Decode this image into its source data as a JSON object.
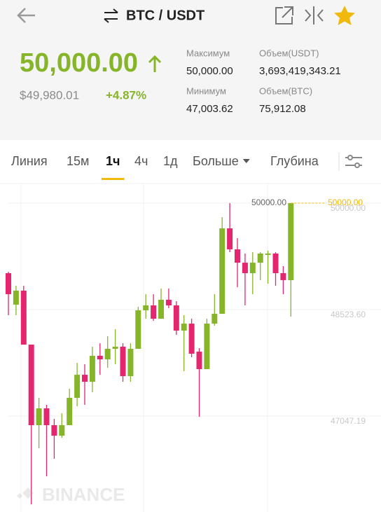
{
  "header": {
    "pair": "BTC / USDT"
  },
  "ticker": {
    "price": "50,000.00",
    "price_usd": "$49,980.01",
    "change": "+4.87%",
    "stats": [
      {
        "label": "Максимум",
        "value": "50,000.00"
      },
      {
        "label": "Объем(USDT)",
        "value": "3,693,419,343.21"
      },
      {
        "label": "Минимум",
        "value": "47,003.62"
      },
      {
        "label": "Объем(BTC)",
        "value": "75,912.08"
      }
    ]
  },
  "tabs": {
    "items": [
      "Линия",
      "15м",
      "1ч",
      "4ч",
      "1д",
      "Больше",
      "Глубина"
    ],
    "selected": 2
  },
  "chart_data": {
    "type": "candlestick",
    "open": [
      49029,
      48592,
      48786,
      48038,
      46921,
      47154,
      46921,
      46775,
      46921,
      47300,
      47620,
      47523,
      47883,
      47834,
      47980,
      48009,
      47601,
      47980,
      48514,
      48582,
      48397,
      48660,
      48582,
      48232,
      48329,
      47941,
      47698,
      48329,
      48465,
      49650,
      49359,
      49174,
      49029,
      49174,
      49282,
      49301,
      49029,
      48932
    ],
    "high": [
      49048,
      48854,
      48854,
      48038,
      47300,
      47203,
      47008,
      47086,
      47426,
      47785,
      47766,
      48009,
      48057,
      48155,
      48252,
      48057,
      48057,
      48562,
      48737,
      48737,
      48815,
      48815,
      48640,
      48446,
      48397,
      47989,
      48397,
      48737,
      49806,
      50000,
      49514,
      49301,
      49320,
      49320,
      49340,
      49320,
      49126,
      50000
    ],
    "low": [
      48446,
      48446,
      48038,
      45823,
      46600,
      46212,
      46455,
      46746,
      46921,
      47183,
      47203,
      47377,
      47620,
      47717,
      47766,
      47523,
      47523,
      47980,
      48397,
      48368,
      48397,
      48543,
      48174,
      47669,
      47863,
      47038,
      47698,
      48300,
      48465,
      49320,
      48834,
      48582,
      48737,
      48932,
      48883,
      48854,
      48737,
      48427
    ],
    "close": [
      48737,
      48786,
      48038,
      46921,
      47154,
      46921,
      46775,
      46921,
      47300,
      47620,
      47523,
      47883,
      47834,
      47980,
      48009,
      47601,
      47980,
      48514,
      48582,
      48397,
      48660,
      48582,
      48232,
      48329,
      47912,
      47698,
      48329,
      48465,
      49650,
      49359,
      49174,
      49029,
      49174,
      49301,
      49301,
      49029,
      48932,
      50000
    ],
    "up_color": "#86b52a",
    "down_color": "#e3266e",
    "ylim": [
      45717,
      50272
    ],
    "yticks": [
      {
        "value": 50000,
        "label": "50000.00"
      },
      {
        "value": 48523.6,
        "label": "48523.60"
      },
      47047.19
    ],
    "grid": true,
    "max_label": {
      "value": 50000,
      "label": "50000.00"
    },
    "last_price": {
      "value": 50000,
      "label": "50000.00"
    },
    "watermark": "BINANCE"
  }
}
